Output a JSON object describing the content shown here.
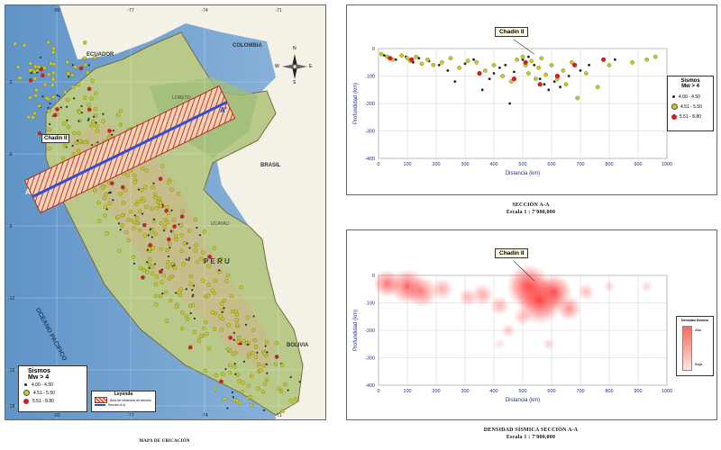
{
  "map": {
    "caption": "MAPA DE UBICACIÓN",
    "lon_ticks": [
      "-80",
      "-77",
      "-74",
      "-71"
    ],
    "lat_ticks": [
      "-3",
      "-6",
      "-9",
      "-12",
      "-15",
      "-18"
    ],
    "labels": {
      "ecuador": "ECUADOR",
      "colombia": "COLOMBIA",
      "brasil": "BRASIL",
      "peru": "P E R U",
      "bolivia": "BOLIVIA",
      "ocean": "OCEANO PACIFICO",
      "chadin": "Chadin II",
      "a": "A",
      "a_prime": "A'",
      "loreto": "LORETO",
      "ucayali": "UCAYALI"
    },
    "compass": {
      "n": "N",
      "s": "S",
      "e": "E",
      "w": "W"
    },
    "sismos_legend": {
      "title": "Sismos",
      "subtitle": "Mw > 4",
      "items": [
        {
          "label": "4.00 - 4.50",
          "color": "#1b2a12"
        },
        {
          "label": "4.51 - 5.50",
          "color": "#c8c81e"
        },
        {
          "label": "5.51 - 8.80",
          "color": "#d02020"
        }
      ]
    },
    "leyenda": {
      "title": "Leyenda",
      "items": [
        "Área de influencia de sección",
        "Sección A-A"
      ]
    }
  },
  "section": {
    "label": "Chadin II",
    "ylabel": "Profundidad (km)",
    "xlabel": "Distancia (km)",
    "caption_line1": "SECCIÓN A-A",
    "caption_line2": "Escala 1 : 7'000,000",
    "legend": {
      "title": "Sismos",
      "subtitle": "Mw > 4",
      "items": [
        {
          "label": "4.00 - 4.50",
          "color": "#1b2a12"
        },
        {
          "label": "4.51 - 5.50",
          "color": "#c8c81e"
        },
        {
          "label": "5.51 - 8.80",
          "color": "#d02020"
        }
      ]
    }
  },
  "density": {
    "label": "Chadin II",
    "ylabel": "Profundidad (km)",
    "xlabel": "Distancia (km)",
    "caption_line1": "DENSIDAD SÍSMICA SECCIÓN A-A",
    "caption_line2": "Escala 1 : 7'000,000",
    "legend_title": "Densidad Sísmica",
    "legend_high": "Alta",
    "legend_low": "Baja"
  },
  "chart_data": [
    {
      "type": "scatter",
      "title": "",
      "xlabel": "Distancia (km)",
      "ylabel": "Profundidad (km)",
      "xlim": [
        0,
        1000
      ],
      "ylim": [
        -400,
        0
      ],
      "xticks": [
        0,
        100,
        200,
        300,
        400,
        500,
        600,
        700,
        800,
        900,
        1000
      ],
      "yticks": [
        0,
        -100,
        -200,
        -300,
        -400
      ],
      "grid": true,
      "legend_position": "right",
      "annotation": {
        "text": "Chadin II",
        "x": 540,
        "y": -20
      },
      "series": [
        {
          "name": "4.00 - 4.50",
          "color": "#1b2a12",
          "points": [
            [
              20,
              -25
            ],
            [
              60,
              -40
            ],
            [
              95,
              -30
            ],
            [
              120,
              -50
            ],
            [
              140,
              -35
            ],
            [
              175,
              -45
            ],
            [
              210,
              -60
            ],
            [
              240,
              -80
            ],
            [
              265,
              -120
            ],
            [
              300,
              -55
            ],
            [
              330,
              -40
            ],
            [
              360,
              -150
            ],
            [
              385,
              -110
            ],
            [
              400,
              -90
            ],
            [
              420,
              -70
            ],
            [
              440,
              -60
            ],
            [
              455,
              -200
            ],
            [
              470,
              -85
            ],
            [
              500,
              -40
            ],
            [
              520,
              -30
            ],
            [
              540,
              -60
            ],
            [
              560,
              -110
            ],
            [
              575,
              -130
            ],
            [
              590,
              -150
            ],
            [
              610,
              -120
            ],
            [
              630,
              -140
            ],
            [
              660,
              -100
            ],
            [
              700,
              -80
            ],
            [
              730,
              -60
            ],
            [
              820,
              -40
            ]
          ]
        },
        {
          "name": "4.51 - 5.50",
          "color": "#c8c81e",
          "points": [
            [
              10,
              -20
            ],
            [
              30,
              -30
            ],
            [
              50,
              -40
            ],
            [
              80,
              -25
            ],
            [
              100,
              -35
            ],
            [
              110,
              -45
            ],
            [
              130,
              -30
            ],
            [
              150,
              -55
            ],
            [
              170,
              -40
            ],
            [
              190,
              -60
            ],
            [
              220,
              -50
            ],
            [
              250,
              -35
            ],
            [
              280,
              -70
            ],
            [
              310,
              -45
            ],
            [
              340,
              -50
            ],
            [
              370,
              -80
            ],
            [
              400,
              -60
            ],
            [
              430,
              -100
            ],
            [
              460,
              -120
            ],
            [
              480,
              -40
            ],
            [
              500,
              -30
            ],
            [
              510,
              -60
            ],
            [
              520,
              -90
            ],
            [
              530,
              -45
            ],
            [
              545,
              -110
            ],
            [
              555,
              -70
            ],
            [
              565,
              -35
            ],
            [
              580,
              -95
            ],
            [
              600,
              -60
            ],
            [
              620,
              -110
            ],
            [
              640,
              -80
            ],
            [
              650,
              -130
            ],
            [
              670,
              -50
            ],
            [
              690,
              -180
            ],
            [
              720,
              -90
            ],
            [
              760,
              -140
            ],
            [
              800,
              -60
            ],
            [
              880,
              -50
            ],
            [
              930,
              -40
            ],
            [
              960,
              -30
            ]
          ]
        },
        {
          "name": "5.51 - 8.80",
          "color": "#d02020",
          "points": [
            [
              40,
              -35
            ],
            [
              115,
              -40
            ],
            [
              350,
              -90
            ],
            [
              470,
              -110
            ],
            [
              510,
              -50
            ],
            [
              560,
              -130
            ],
            [
              620,
              -100
            ],
            [
              680,
              -60
            ],
            [
              780,
              -40
            ]
          ]
        }
      ]
    },
    {
      "type": "heatmap",
      "title": "",
      "xlabel": "Distancia (km)",
      "ylabel": "Profundidad (km)",
      "xlim": [
        0,
        1000
      ],
      "ylim": [
        -400,
        0
      ],
      "xticks": [
        0,
        100,
        200,
        300,
        400,
        500,
        600,
        700,
        800,
        900,
        1000
      ],
      "yticks": [
        0,
        -100,
        -200,
        -300,
        -400
      ],
      "grid": true,
      "legend_position": "right",
      "annotation": {
        "text": "Chadin II",
        "x": 540,
        "y": -20
      },
      "blobs": [
        {
          "x": 30,
          "y": -30,
          "r": 22,
          "w": 0.75
        },
        {
          "x": 100,
          "y": -40,
          "r": 28,
          "w": 0.8
        },
        {
          "x": 150,
          "y": -60,
          "r": 25,
          "w": 0.65
        },
        {
          "x": 220,
          "y": -50,
          "r": 18,
          "w": 0.45
        },
        {
          "x": 310,
          "y": -80,
          "r": 15,
          "w": 0.4
        },
        {
          "x": 360,
          "y": -70,
          "r": 18,
          "w": 0.45
        },
        {
          "x": 420,
          "y": -110,
          "r": 16,
          "w": 0.4
        },
        {
          "x": 450,
          "y": -200,
          "r": 12,
          "w": 0.3
        },
        {
          "x": 520,
          "y": -40,
          "r": 35,
          "w": 1.0
        },
        {
          "x": 560,
          "y": -90,
          "r": 38,
          "w": 1.0
        },
        {
          "x": 610,
          "y": -60,
          "r": 28,
          "w": 0.85
        },
        {
          "x": 660,
          "y": -120,
          "r": 20,
          "w": 0.6
        },
        {
          "x": 500,
          "y": -150,
          "r": 15,
          "w": 0.35
        },
        {
          "x": 720,
          "y": -60,
          "r": 14,
          "w": 0.35
        },
        {
          "x": 800,
          "y": -40,
          "r": 10,
          "w": 0.25
        },
        {
          "x": 930,
          "y": -40,
          "r": 10,
          "w": 0.25
        },
        {
          "x": 590,
          "y": -250,
          "r": 10,
          "w": 0.25
        },
        {
          "x": 420,
          "y": -250,
          "r": 9,
          "w": 0.2
        }
      ]
    }
  ]
}
